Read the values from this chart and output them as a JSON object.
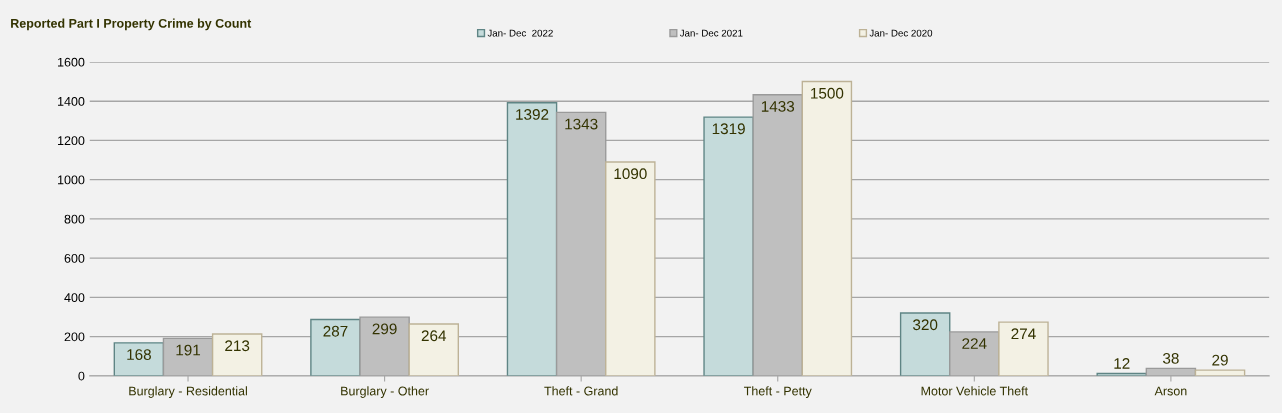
{
  "chart_data": {
    "type": "bar",
    "title": "Reported Part I Property Crime by Count",
    "categories": [
      "Burglary - Residential",
      "Burglary - Other",
      "Theft - Grand",
      "Theft - Petty",
      "Motor Vehicle Theft",
      "Arson"
    ],
    "series": [
      {
        "name": "Jan- Dec  2022",
        "color": "#c5dbdb",
        "values": [
          168,
          287,
          1392,
          1319,
          320,
          12
        ]
      },
      {
        "name": "Jan- Dec 2021",
        "color": "#bfbfbf",
        "values": [
          191,
          299,
          1343,
          1433,
          224,
          38
        ]
      },
      {
        "name": "Jan- Dec 2020",
        "color": "#f3f1e4",
        "values": [
          213,
          264,
          1090,
          1500,
          274,
          29
        ]
      }
    ],
    "ylim": [
      0,
      1600
    ],
    "yticks": [
      0,
      200,
      400,
      600,
      800,
      1000,
      1200,
      1400,
      1600
    ],
    "grid": "y",
    "legend": "top",
    "data_labels": true
  }
}
